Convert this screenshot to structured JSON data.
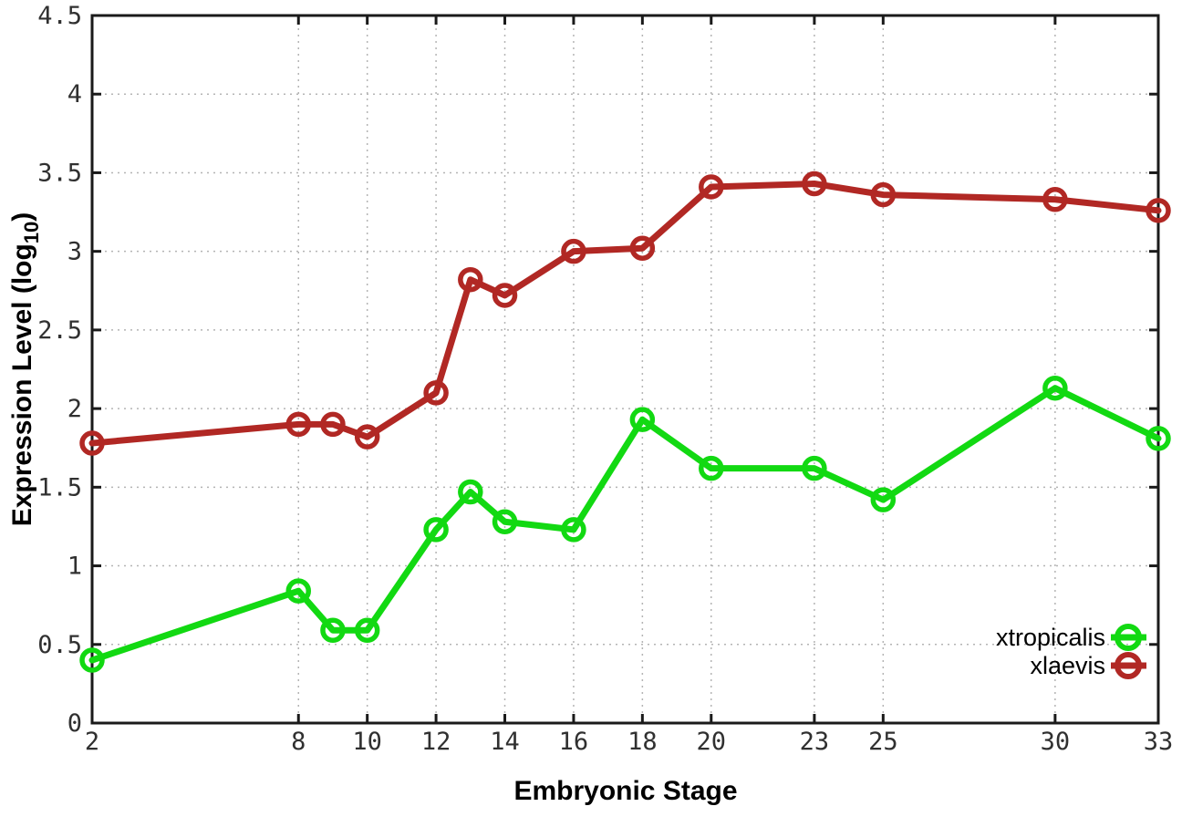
{
  "chart_data": {
    "type": "line",
    "title": "",
    "xlabel": "Embryonic Stage",
    "ylabel_main": "Expression Level (log",
    "ylabel_sub": "10",
    "ylabel_close": ")",
    "x": [
      2,
      8,
      9,
      10,
      12,
      13,
      14,
      16,
      18,
      20,
      23,
      25,
      30,
      33
    ],
    "xlim": [
      2,
      33
    ],
    "ylim": [
      0,
      4.5
    ],
    "x_tick_labels": [
      "2",
      "8",
      "10",
      "12",
      "14",
      "16",
      "18",
      "20",
      "23",
      "25",
      "30",
      "33"
    ],
    "x_tick_values": [
      2,
      8,
      10,
      12,
      14,
      16,
      18,
      20,
      23,
      25,
      30,
      33
    ],
    "y_tick_labels": [
      "0",
      "0.5",
      "1",
      "1.5",
      "2",
      "2.5",
      "3",
      "3.5",
      "4",
      "4.5"
    ],
    "y_tick_values": [
      0,
      0.5,
      1,
      1.5,
      2,
      2.5,
      3,
      3.5,
      4,
      4.5
    ],
    "grid": true,
    "legend_position": "bottom-right",
    "series": [
      {
        "name": "xtropicalis",
        "color": "#12d912",
        "values": [
          0.4,
          0.84,
          0.59,
          0.59,
          1.23,
          1.47,
          1.28,
          1.23,
          1.93,
          1.62,
          1.62,
          1.42,
          2.13,
          1.81
        ]
      },
      {
        "name": "xlaevis",
        "color": "#b12824",
        "values": [
          1.78,
          1.9,
          1.9,
          1.82,
          2.1,
          2.82,
          2.72,
          3.0,
          3.02,
          3.41,
          3.43,
          3.36,
          3.33,
          3.26
        ]
      }
    ]
  },
  "styles": {
    "background": "#ffffff",
    "border_color": "#1a1a1a",
    "grid_color": "#b4b4b4",
    "tick_color": "#1a1a1a",
    "text_color": "#303030"
  }
}
